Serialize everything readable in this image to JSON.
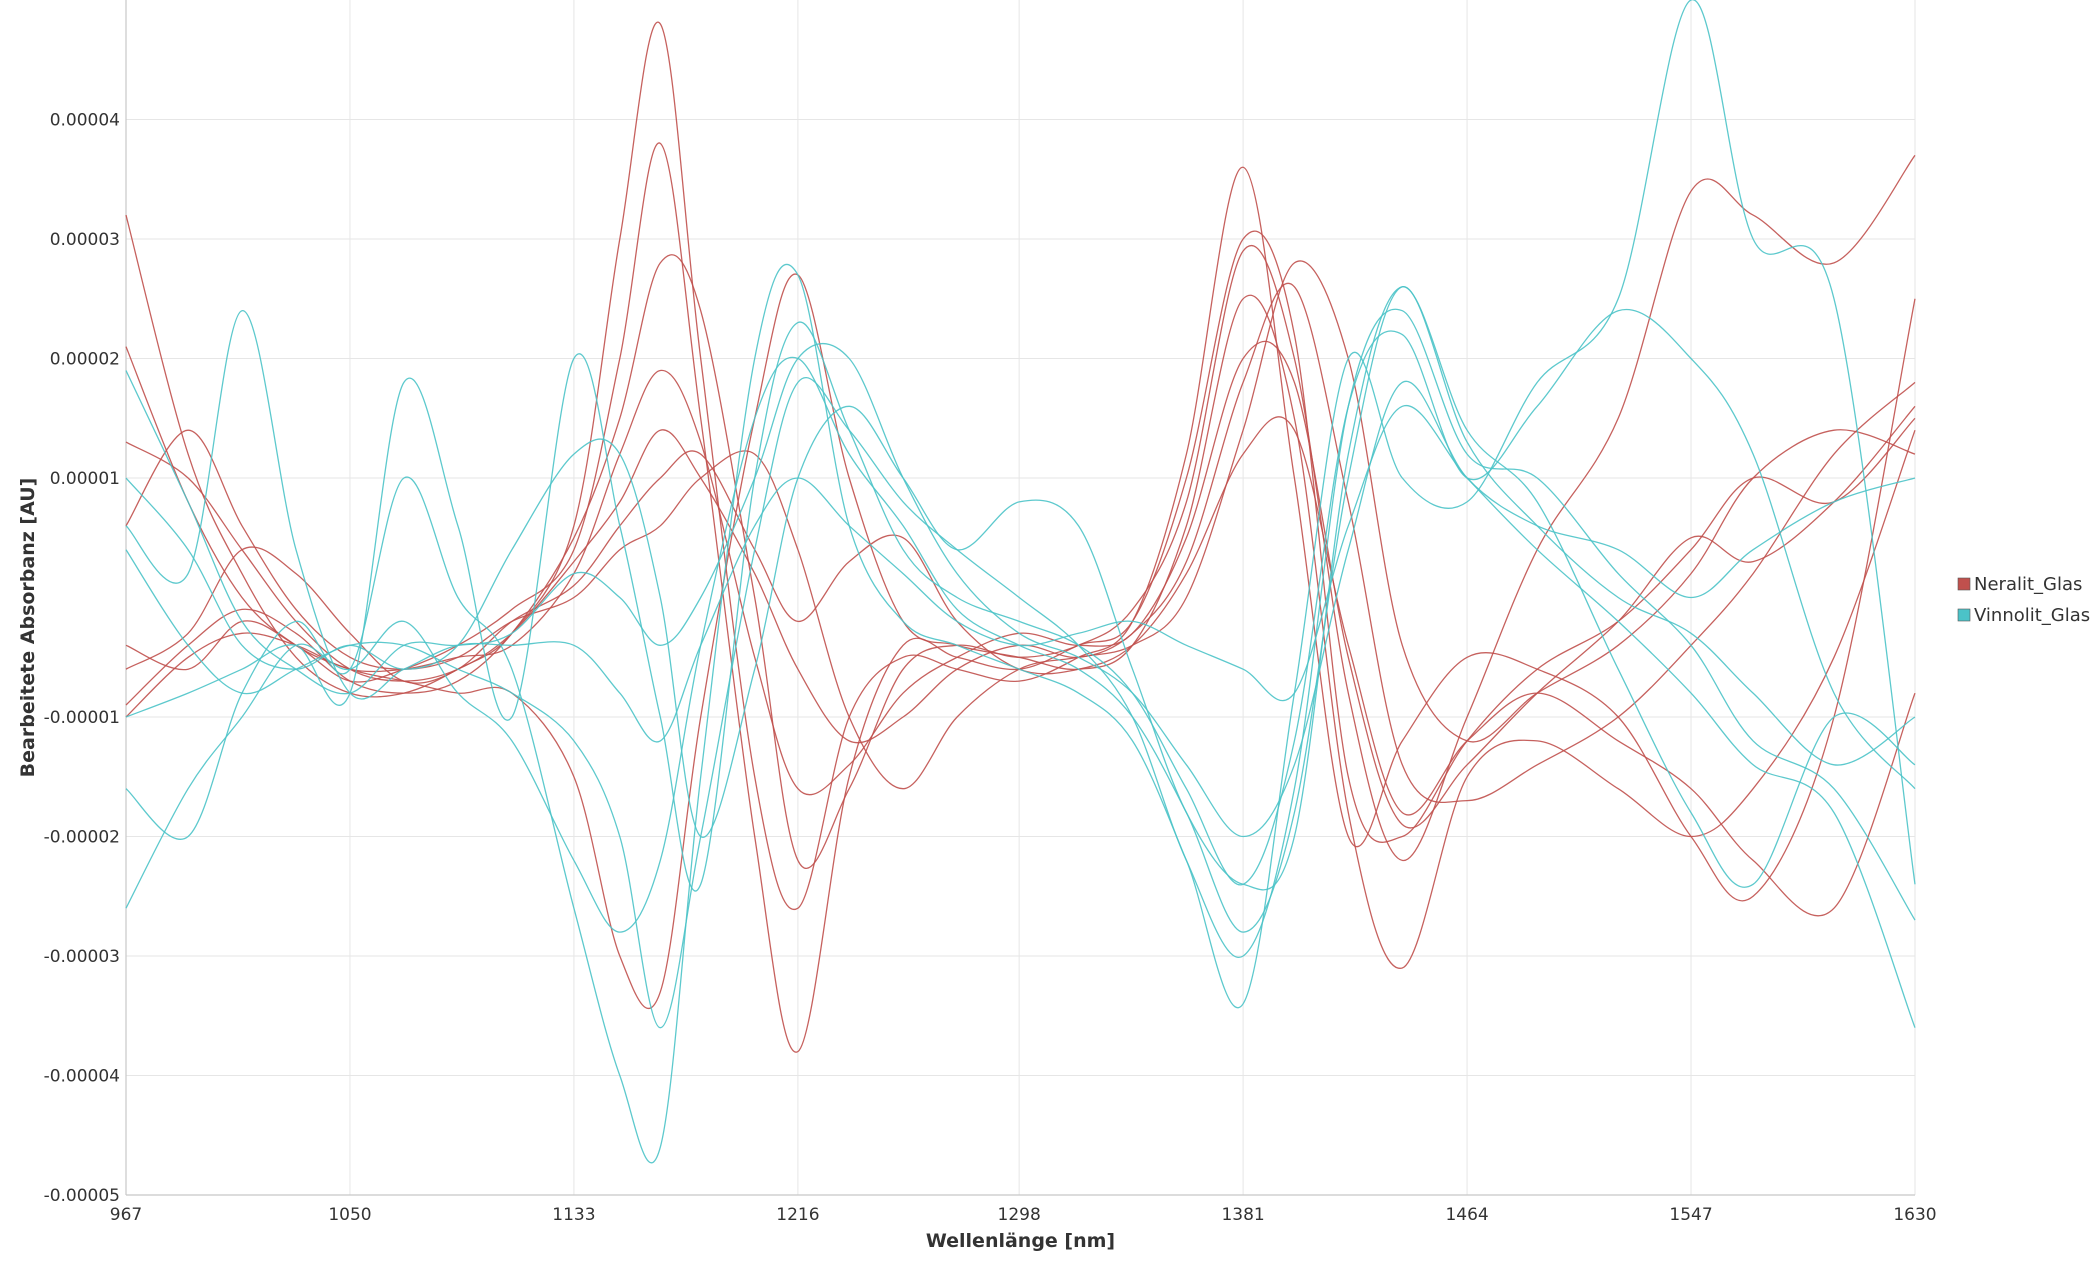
{
  "chart_data": {
    "type": "line",
    "title": "",
    "xlabel": "Wellenlänge [nm]",
    "ylabel": "Bearbeitete Absorbanz [AU]",
    "xlim": [
      967,
      1630
    ],
    "ylim": [
      -5e-05,
      5e-05
    ],
    "x_ticks": [
      967,
      1050,
      1133,
      1216,
      1298,
      1381,
      1464,
      1547,
      1630
    ],
    "x_tick_labels": [
      "967",
      "1050",
      "1133",
      "1216",
      "1298",
      "1381",
      "1464",
      "1547",
      "1630"
    ],
    "y_ticks": [
      -5e-05,
      -4e-05,
      -3e-05,
      -2e-05,
      -1e-05,
      1e-05,
      2e-05,
      3e-05,
      4e-05
    ],
    "y_tick_labels": [
      "-0.00005",
      "-0.00004",
      "-0.00003",
      "-0.00002",
      "-0.00001",
      "0.00001",
      "0.00002",
      "0.00003",
      "0.00004"
    ],
    "grid": true,
    "legend_position": "right",
    "series_x": [
      967,
      990,
      1010,
      1030,
      1050,
      1070,
      1090,
      1110,
      1133,
      1150,
      1165,
      1180,
      1200,
      1216,
      1235,
      1255,
      1275,
      1298,
      1320,
      1340,
      1360,
      1381,
      1400,
      1420,
      1440,
      1464,
      1490,
      1520,
      1547,
      1570,
      1600,
      1630
    ],
    "groups": [
      {
        "name": "Neralit_Glas",
        "color": "#c0504d",
        "series": [
          {
            "name": "Neralit_Glas 1",
            "values": [
              -4e-06,
              -6e-06,
              -2e-06,
              -4e-06,
              -7e-06,
              -6e-06,
              -4e-06,
              -1e-06,
              4e-06,
              2e-05,
              3.8e-05,
              1.5e-05,
              -2e-05,
              -3.8e-05,
              -1.5e-05,
              -4e-06,
              -5e-06,
              -6e-06,
              -4e-06,
              -2e-06,
              1e-05,
              3e-05,
              2.2e-05,
              -1.5e-05,
              -2e-05,
              -1.2e-05,
              -6e-06,
              -2e-06,
              4e-06,
              1e-05,
              8e-06,
              1.5e-05
            ]
          },
          {
            "name": "Neralit_Glas 2",
            "values": [
              3.2e-05,
              1.2e-05,
              2e-06,
              -5e-06,
              -8e-06,
              -8e-06,
              -6e-06,
              -3e-06,
              6e-06,
              3e-05,
              4.8e-05,
              2e-05,
              -1.5e-05,
              -2.6e-05,
              -1e-05,
              -5e-06,
              -6e-06,
              -7e-06,
              -5e-06,
              -2e-06,
              1.2e-05,
              3.6e-05,
              1e-05,
              -2e-05,
              -1.2e-05,
              -5e-06,
              -6e-06,
              -1e-05,
              -2e-05,
              -2.5e-05,
              -1e-05,
              2.5e-05
            ]
          },
          {
            "name": "Neralit_Glas 3",
            "values": [
              2.1e-05,
              8e-06,
              0.0,
              -4e-06,
              -6e-06,
              -7e-06,
              -8e-06,
              -8e-06,
              -1.5e-05,
              -3e-05,
              -3.3e-05,
              -1e-05,
              1.5e-05,
              2.7e-05,
              1e-05,
              -2e-06,
              -4e-06,
              -5e-06,
              -6e-06,
              -4e-06,
              6e-06,
              2.5e-05,
              1.5e-05,
              -1.8e-05,
              -3.1e-05,
              -1.5e-05,
              -1.2e-05,
              -1.6e-05,
              -2e-05,
              -1.6e-05,
              -5e-06,
              1.4e-05
            ]
          },
          {
            "name": "Neralit_Glas 4",
            "values": [
              -1e-05,
              -5e-06,
              -3e-06,
              -4e-06,
              -6e-06,
              -6e-06,
              -5e-06,
              -4e-06,
              2e-06,
              1.2e-05,
              1.9e-05,
              1.3e-05,
              -5e-06,
              -1.6e-05,
              -1.4e-05,
              -8e-06,
              -5e-06,
              -3e-06,
              -4e-06,
              -3e-06,
              5e-06,
              2e-05,
              1.8e-05,
              -5e-06,
              -1.9e-05,
              -1.4e-05,
              -8e-06,
              -2e-06,
              5e-06,
              3e-06,
              8e-06,
              1.6e-05
            ]
          },
          {
            "name": "Neralit_Glas 5",
            "values": [
              1.3e-05,
              1e-05,
              4e-06,
              -2e-06,
              -6e-06,
              -7e-06,
              -6e-06,
              -3e-06,
              3e-06,
              8e-06,
              1.4e-05,
              1e-05,
              2e-06,
              -6e-06,
              -1.2e-05,
              -1e-05,
              -6e-06,
              -4e-06,
              -5e-06,
              -3e-06,
              3e-06,
              1.8e-05,
              2.6e-05,
              8e-06,
              -1.4e-05,
              -1.7e-05,
              -1.4e-05,
              -1e-05,
              -4e-06,
              2e-06,
              1.2e-05,
              1.8e-05
            ]
          },
          {
            "name": "Neralit_Glas 6",
            "values": [
              6e-06,
              1.4e-05,
              6e-06,
              -1e-06,
              -5e-06,
              -6e-06,
              -5e-06,
              -2e-06,
              0.0,
              4e-06,
              6e-06,
              1e-05,
              1.2e-05,
              4e-06,
              -1e-05,
              -1.6e-05,
              -1e-05,
              -6e-06,
              -5e-06,
              -4e-06,
              0.0,
              1.4e-05,
              2.8e-05,
              2e-05,
              -4e-06,
              -1.2e-05,
              -8e-06,
              -4e-06,
              2e-06,
              1e-05,
              1.4e-05,
              1.2e-05
            ]
          },
          {
            "name": "Neralit_Glas 7",
            "values": [
              -6e-06,
              -3e-06,
              4e-06,
              2e-06,
              -3e-06,
              -7e-06,
              -6e-06,
              -2e-06,
              1e-06,
              6e-06,
              1e-05,
              1.2e-05,
              4e-06,
              -2e-06,
              3e-06,
              5e-06,
              -2e-06,
              -6e-06,
              -6e-06,
              -4e-06,
              2e-06,
              1.2e-05,
              1.4e-05,
              -4e-06,
              -1.8e-05,
              -1.2e-05,
              -8e-06,
              -1.2e-05,
              -1.6e-05,
              -2.2e-05,
              -2.6e-05,
              -8e-06
            ]
          },
          {
            "name": "Neralit_Glas 8",
            "values": [
              -9e-06,
              -4e-06,
              -1e-06,
              -3e-06,
              -7e-06,
              -8e-06,
              -7e-06,
              -3e-06,
              5e-06,
              1.5e-05,
              2.8e-05,
              2.4e-05,
              0.0,
              -2.2e-05,
              -1.6e-05,
              -6e-06,
              -4e-06,
              -5e-06,
              -4e-06,
              -1e-06,
              8e-06,
              2.9e-05,
              2e-05,
              -8e-06,
              -2.2e-05,
              -1e-05,
              4e-06,
              1.5e-05,
              3.4e-05,
              3.2e-05,
              2.8e-05,
              3.7e-05
            ]
          }
        ]
      },
      {
        "name": "Vinnolit_Glas",
        "color": "#4bc3c8",
        "series": [
          {
            "name": "Vinnolit_Glas 1",
            "values": [
              -1.6e-05,
              -2e-05,
              -8e-06,
              -2e-06,
              -6e-06,
              1e-05,
              0.0,
              -6e-06,
              -2.6e-05,
              -4e-05,
              -4.6e-05,
              -1.5e-05,
              2e-05,
              2.7e-05,
              6e-06,
              -2e-06,
              -4e-06,
              -6e-06,
              -8e-06,
              -1.2e-05,
              -2.2e-05,
              -3.4e-05,
              -8e-06,
              2e-05,
              1e-05,
              8e-06,
              1.8e-05,
              2.5e-05,
              5e-05,
              3e-05,
              2.5e-05,
              -2.4e-05
            ]
          },
          {
            "name": "Vinnolit_Glas 2",
            "values": [
              -2.6e-05,
              -1.6e-05,
              -1e-05,
              -4e-06,
              -6e-06,
              -2e-06,
              -8e-06,
              -1.2e-05,
              -2.2e-05,
              -2.8e-05,
              -2.2e-05,
              -4e-06,
              1.5e-05,
              2e-05,
              1.2e-05,
              6e-06,
              -1e-06,
              -4e-06,
              -6e-06,
              -1e-05,
              -1.8e-05,
              -2.8e-05,
              -1.8e-05,
              1e-05,
              2.6e-05,
              1.3e-05,
              6e-06,
              0.0,
              -3e-06,
              -8e-06,
              -1.4e-05,
              -1e-05
            ]
          },
          {
            "name": "Vinnolit_Glas 3",
            "values": [
              1.9e-05,
              8e-06,
              -2e-06,
              -6e-06,
              -8e-06,
              -4e-06,
              -4e-06,
              -3e-06,
              2e-06,
              0.0,
              -4e-06,
              0.0,
              1e-05,
              2e-05,
              2e-05,
              1e-05,
              2e-06,
              -3e-06,
              -5e-06,
              -8e-06,
              -1.4e-05,
              -2e-05,
              -1.4e-05,
              4e-06,
              1.8e-05,
              1e-05,
              6e-06,
              4e-06,
              0.0,
              4e-06,
              8e-06,
              1e-05
            ]
          },
          {
            "name": "Vinnolit_Glas 4",
            "values": [
              6e-06,
              2e-06,
              2.4e-05,
              4e-06,
              -8e-06,
              -6e-06,
              -4e-06,
              -4e-06,
              -4e-06,
              -8e-06,
              -1.2e-05,
              -4e-06,
              6e-06,
              1e-05,
              6e-06,
              2e-06,
              -2e-06,
              -4e-06,
              -3e-06,
              -2e-06,
              -4e-06,
              -6e-06,
              -8e-06,
              6e-06,
              1.6e-05,
              1e-05,
              4e-06,
              -2e-06,
              -8e-06,
              -1.4e-05,
              -1.8e-05,
              -3.6e-05
            ]
          },
          {
            "name": "Vinnolit_Glas 5",
            "values": [
              -1e-05,
              -8e-06,
              -6e-06,
              -4e-06,
              -8e-06,
              1.8e-05,
              6e-06,
              -1e-05,
              2e-05,
              6e-06,
              -1e-05,
              -2.4e-05,
              1e-05,
              2.3e-05,
              1.4e-05,
              4e-06,
              0.0,
              -2e-06,
              -4e-06,
              -8e-06,
              -1.6e-05,
              -2.4e-05,
              -1.2e-05,
              1.6e-05,
              2.2e-05,
              1e-05,
              1.6e-05,
              2.4e-05,
              2e-05,
              1.2e-05,
              -8e-06,
              -1.6e-05
            ]
          },
          {
            "name": "Vinnolit_Glas 6",
            "values": [
              4e-06,
              -4e-06,
              -8e-06,
              -6e-06,
              -4e-06,
              -4e-06,
              -6e-06,
              -8e-06,
              -1.2e-05,
              -2e-05,
              -3.6e-05,
              -2e-05,
              4e-06,
              1.8e-05,
              1.4e-05,
              8e-06,
              4e-06,
              0.0,
              -4e-06,
              -1e-05,
              -2.2e-05,
              -3e-05,
              -1.6e-05,
              1.6e-05,
              2.4e-05,
              1.2e-05,
              1e-05,
              2e-06,
              -4e-06,
              -1.2e-05,
              -1.6e-05,
              -2.7e-05
            ]
          },
          {
            "name": "Vinnolit_Glas 7",
            "values": [
              1e-05,
              4e-06,
              -4e-06,
              -6e-06,
              -4e-06,
              -6e-06,
              -4e-06,
              4e-06,
              1.2e-05,
              1.2e-05,
              0.0,
              -2e-05,
              -6e-06,
              1e-05,
              1.6e-05,
              1e-05,
              4e-06,
              8e-06,
              6e-06,
              -6e-06,
              -1.8e-05,
              -2.4e-05,
              -2e-05,
              1.2e-05,
              2.6e-05,
              1.4e-05,
              8e-06,
              -6e-06,
              -1.8e-05,
              -2.4e-05,
              -1e-05,
              -1.4e-05
            ]
          }
        ]
      }
    ]
  }
}
